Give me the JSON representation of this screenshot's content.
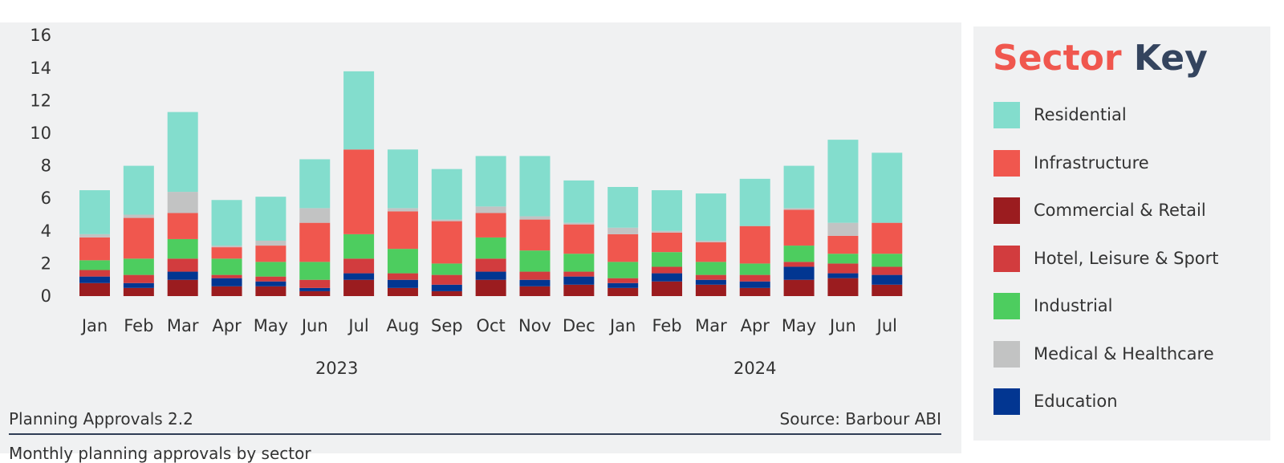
{
  "chart_data": {
    "type": "bar",
    "stacked": true,
    "categories": [
      "Jan",
      "Feb",
      "Mar",
      "Apr",
      "May",
      "Jun",
      "Jul",
      "Aug",
      "Sep",
      "Oct",
      "Nov",
      "Dec",
      "Jan",
      "Feb",
      "Mar",
      "Apr",
      "May",
      "Jun",
      "Jul"
    ],
    "year_labels": [
      "2023",
      "2024"
    ],
    "ylim": [
      0,
      16
    ],
    "yticks": [
      0,
      2,
      4,
      6,
      8,
      10,
      12,
      14,
      16
    ],
    "grid": false,
    "legend": "right",
    "series": [
      {
        "name": "Commercial & Retail",
        "color": "#9b1c1f",
        "values": [
          0.8,
          0.5,
          1.0,
          0.6,
          0.6,
          0.3,
          1.0,
          0.5,
          0.3,
          1.0,
          0.6,
          0.7,
          0.5,
          0.9,
          0.7,
          0.5,
          1.0,
          1.1,
          0.7
        ]
      },
      {
        "name": "Education",
        "color": "#023691",
        "values": [
          0.4,
          0.3,
          0.5,
          0.5,
          0.3,
          0.2,
          0.4,
          0.5,
          0.4,
          0.5,
          0.4,
          0.5,
          0.3,
          0.5,
          0.3,
          0.4,
          0.8,
          0.3,
          0.6
        ]
      },
      {
        "name": "Hotel, Leisure & Sport",
        "color": "#d23c3e",
        "values": [
          0.4,
          0.5,
          0.8,
          0.2,
          0.3,
          0.5,
          0.9,
          0.4,
          0.6,
          0.8,
          0.5,
          0.3,
          0.3,
          0.4,
          0.3,
          0.4,
          0.3,
          0.6,
          0.5
        ]
      },
      {
        "name": "Industrial",
        "color": "#4dcd5f",
        "values": [
          0.6,
          1.0,
          1.2,
          1.0,
          0.9,
          1.1,
          1.5,
          1.5,
          0.7,
          1.3,
          1.3,
          1.1,
          1.0,
          0.9,
          0.8,
          0.7,
          1.0,
          0.6,
          0.8
        ]
      },
      {
        "name": "Infrastructure",
        "color": "#f0574e",
        "values": [
          1.4,
          2.5,
          1.6,
          0.7,
          1.0,
          2.4,
          5.2,
          2.3,
          2.6,
          1.5,
          1.9,
          1.8,
          1.7,
          1.2,
          1.2,
          2.3,
          2.2,
          1.1,
          1.9
        ]
      },
      {
        "name": "Medical & Healthcare",
        "color": "#c2c3c3",
        "values": [
          0.2,
          0.2,
          1.3,
          0.1,
          0.3,
          0.9,
          0.0,
          0.2,
          0.1,
          0.4,
          0.2,
          0.1,
          0.4,
          0.1,
          0.1,
          0.0,
          0.1,
          0.8,
          0.0
        ]
      },
      {
        "name": "Residential",
        "color": "#83ddcd",
        "values": [
          2.7,
          3.0,
          4.9,
          2.8,
          2.7,
          3.0,
          4.8,
          3.6,
          3.1,
          3.1,
          3.7,
          2.6,
          2.5,
          2.5,
          2.9,
          2.9,
          2.6,
          5.1,
          4.3
        ]
      }
    ]
  },
  "footer": {
    "title": "Planning Approvals 2.2",
    "source": "Source: Barbour ABI",
    "subtitle": "Monthly planning approvals by sector"
  },
  "legend_panel": {
    "title_word1": "Sector",
    "title_word2": "Key",
    "items": [
      {
        "label": "Residential",
        "color": "#83ddcd"
      },
      {
        "label": "Infrastructure",
        "color": "#f0574e"
      },
      {
        "label": "Commercial & Retail",
        "color": "#9b1c1f"
      },
      {
        "label": "Hotel, Leisure & Sport",
        "color": "#d23c3e"
      },
      {
        "label": "Industrial",
        "color": "#4dcd5f"
      },
      {
        "label": "Medical & Healthcare",
        "color": "#c2c3c3"
      },
      {
        "label": "Education",
        "color": "#023691"
      }
    ]
  }
}
